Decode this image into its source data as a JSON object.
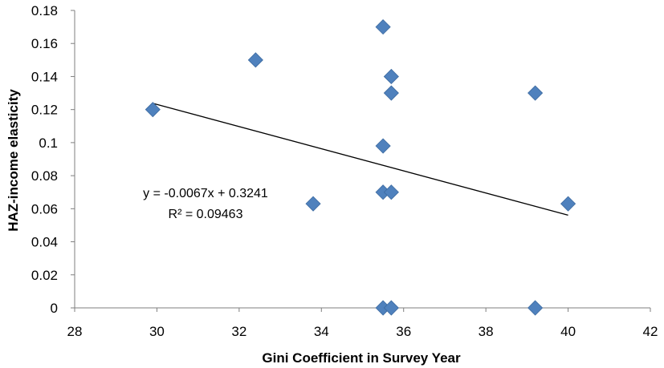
{
  "chart_data": {
    "type": "scatter",
    "title": "",
    "xlabel": "Gini Coefficient in Survey Year",
    "ylabel": "HAZ-income elasticity",
    "xlim": [
      28,
      42
    ],
    "ylim": [
      0,
      0.18
    ],
    "x_ticks": [
      "28",
      "30",
      "32",
      "34",
      "36",
      "38",
      "40",
      "42"
    ],
    "y_ticks": [
      "0",
      "0.02",
      "0.04",
      "0.06",
      "0.08",
      "0.1",
      "0.12",
      "0.14",
      "0.16",
      "0.18"
    ],
    "grid": false,
    "legend": "none",
    "marker_color": "#4f81bd",
    "points": [
      {
        "x": 29.9,
        "y": 0.12
      },
      {
        "x": 32.4,
        "y": 0.15
      },
      {
        "x": 33.8,
        "y": 0.063
      },
      {
        "x": 35.5,
        "y": 0.17
      },
      {
        "x": 35.5,
        "y": 0.098
      },
      {
        "x": 35.5,
        "y": 0.07
      },
      {
        "x": 35.5,
        "y": 0.0
      },
      {
        "x": 35.7,
        "y": 0.14
      },
      {
        "x": 35.7,
        "y": 0.13
      },
      {
        "x": 35.7,
        "y": 0.07
      },
      {
        "x": 35.7,
        "y": 0.0
      },
      {
        "x": 39.2,
        "y": 0.13
      },
      {
        "x": 39.2,
        "y": 0.0
      },
      {
        "x": 40.0,
        "y": 0.063
      }
    ],
    "trendline": {
      "slope": -0.0067,
      "intercept": 0.3241,
      "x_range": [
        29.9,
        40.0
      ],
      "equation": "y = -0.0067x + 0.3241",
      "r_squared": "R² = 0.09463",
      "color": "#000000"
    }
  }
}
